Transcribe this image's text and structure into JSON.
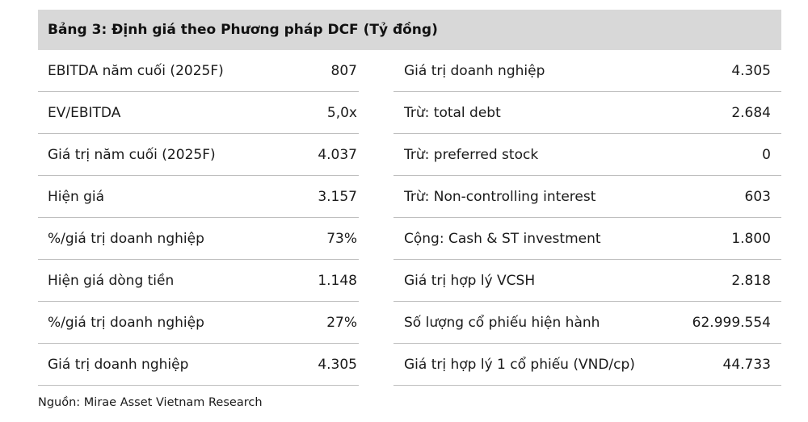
{
  "table": {
    "title": "Bảng 3: Định giá theo Phương pháp DCF (Tỷ đồng)",
    "left_rows": [
      {
        "label": "EBITDA năm cuối (2025F)",
        "value": "807"
      },
      {
        "label": "EV/EBITDA",
        "value": "5,0x"
      },
      {
        "label": "Giá trị năm cuối (2025F)",
        "value": "4.037"
      },
      {
        "label": "Hiện giá",
        "value": "3.157"
      },
      {
        "label": "%/giá trị doanh nghiệp",
        "value": "73%"
      },
      {
        "label": "Hiện giá dòng tiền",
        "value": "1.148"
      },
      {
        "label": "%/giá trị doanh nghiệp",
        "value": "27%"
      },
      {
        "label": "Giá trị doanh nghiệp",
        "value": "4.305"
      }
    ],
    "right_rows": [
      {
        "label": "Giá trị doanh nghiệp",
        "value": "4.305"
      },
      {
        "label": "Trừ: total debt",
        "value": "2.684"
      },
      {
        "label": "Trừ: preferred stock",
        "value": "0"
      },
      {
        "label": "Trừ: Non-controlling interest",
        "value": "603"
      },
      {
        "label": "Cộng: Cash & ST investment",
        "value": "1.800"
      },
      {
        "label": "Giá trị hợp lý VCSH",
        "value": "2.818"
      },
      {
        "label": "Số lượng cổ phiếu hiện hành",
        "value": "62.999.554"
      },
      {
        "label": "Giá trị hợp lý 1 cổ phiếu (VND/cp)",
        "value": "44.733"
      }
    ]
  },
  "source": "Nguồn: Mirae Asset Vietnam Research"
}
